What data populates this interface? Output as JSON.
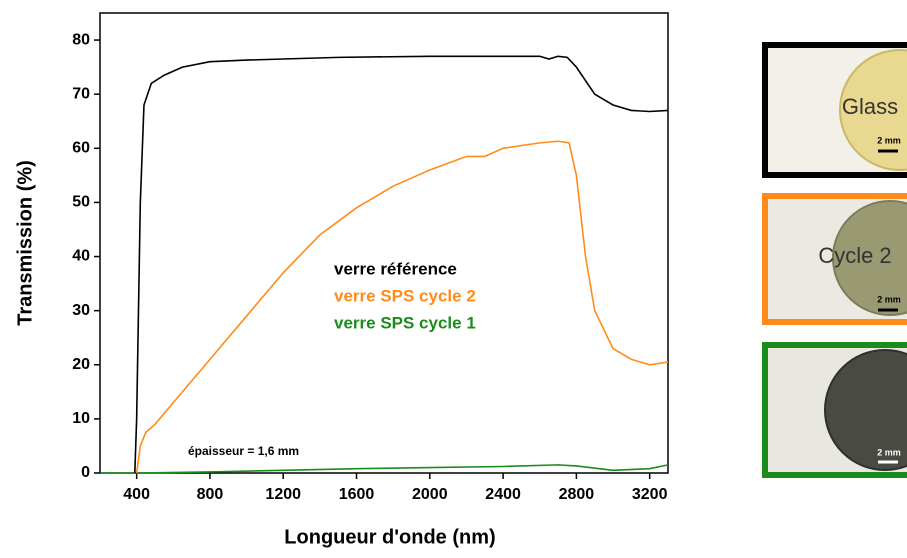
{
  "chart_data": {
    "type": "line",
    "xlabel": "Longueur d'onde (nm)",
    "ylabel": "Transmission (%)",
    "xlim": [
      200,
      3300
    ],
    "ylim": [
      0,
      85
    ],
    "xticks": [
      400,
      800,
      1200,
      1600,
      2000,
      2400,
      2800,
      3200
    ],
    "yticks": [
      0,
      10,
      20,
      30,
      40,
      50,
      60,
      70,
      80
    ],
    "annotation": "épaisseur = 1,6 mm",
    "series": [
      {
        "name": "verre référence",
        "color": "#000000",
        "x": [
          390,
          400,
          420,
          440,
          480,
          550,
          650,
          800,
          1000,
          1500,
          2000,
          2400,
          2600,
          2650,
          2700,
          2750,
          2800,
          2900,
          3000,
          3100,
          3200,
          3300
        ],
        "values": [
          0,
          10,
          50,
          68,
          72,
          73.5,
          75,
          76,
          76.3,
          76.8,
          77,
          77,
          77,
          76.5,
          77,
          76.8,
          75,
          70,
          68,
          67,
          66.8,
          67
        ]
      },
      {
        "name": "verre SPS cycle 2",
        "color": "#ff8c1a",
        "x": [
          400,
          420,
          450,
          500,
          600,
          800,
          1000,
          1200,
          1400,
          1600,
          1800,
          2000,
          2200,
          2300,
          2400,
          2600,
          2700,
          2760,
          2800,
          2850,
          2900,
          3000,
          3100,
          3200,
          3300
        ],
        "values": [
          0,
          5,
          7.5,
          9,
          13,
          21,
          29,
          37,
          44,
          49,
          53,
          56,
          58.5,
          58.5,
          60,
          61,
          61.3,
          61,
          55,
          40,
          30,
          23,
          21,
          20,
          20.5
        ]
      },
      {
        "name": "verre SPS cycle 1",
        "color": "#1a8c1a",
        "x": [
          200,
          400,
          800,
          1200,
          1600,
          2000,
          2400,
          2700,
          2800,
          3000,
          3200,
          3300
        ],
        "values": [
          0,
          0,
          0.2,
          0.5,
          0.8,
          1,
          1.2,
          1.5,
          1.3,
          0.5,
          0.8,
          1.5
        ]
      }
    ],
    "inset_labels": [
      "Glass",
      "Cycle 2"
    ],
    "scale_bar_labels": [
      "2 mm",
      "2 mm",
      "2 mm"
    ]
  }
}
